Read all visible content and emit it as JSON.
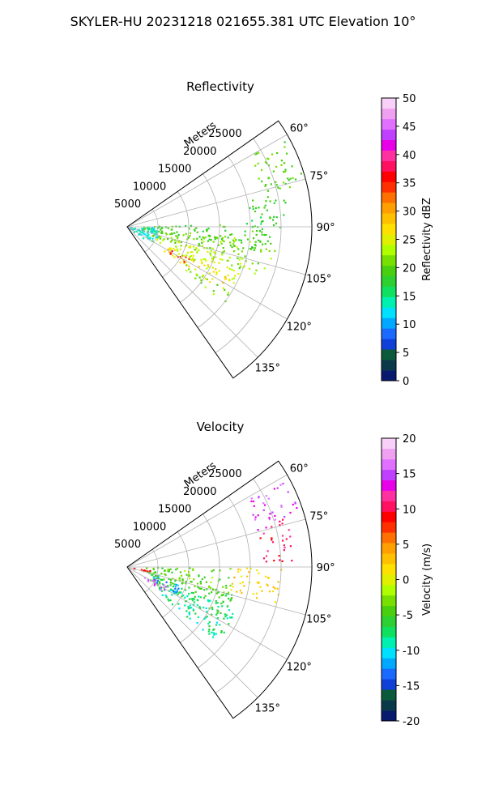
{
  "figure": {
    "title": "SKYLER-HU  20231218  021655.381 UTC Elevation 10°"
  },
  "chart_data": [
    {
      "type": "heatmap",
      "projection": "polar-sector",
      "title": "Reflectivity",
      "range_label": "Meters",
      "range_ticks": [
        5000,
        10000,
        15000,
        20000,
        25000
      ],
      "range_max": 30000,
      "azimuth_range": [
        55,
        145
      ],
      "azimuth_ticks": [
        "60°",
        "75°",
        "90°",
        "105°",
        "120°",
        "135°"
      ],
      "grid": true,
      "colorbar": {
        "label": "Reflectivity dBZ",
        "min": 0,
        "max": 50,
        "ticks": [
          0,
          5,
          10,
          15,
          20,
          25,
          30,
          35,
          40,
          45,
          50
        ],
        "colors": [
          "#081a6e",
          "#0a3a4a",
          "#0b5a3a",
          "#1040d8",
          "#1a6aff",
          "#00a8ff",
          "#00e0ff",
          "#00f0b0",
          "#10e060",
          "#2cd030",
          "#48d010",
          "#78e000",
          "#b0ff00",
          "#e0f000",
          "#ffe000",
          "#ffc000",
          "#ffa000",
          "#ff7000",
          "#ff3000",
          "#ff0000",
          "#ff1060",
          "#ff30a0",
          "#e800e8",
          "#c040ff",
          "#e070ff",
          "#f0a0f0",
          "#f8d0f8"
        ]
      },
      "regions": [
        {
          "az": [
            60,
            76
          ],
          "r": [
            22000,
            29500
          ],
          "value": 20
        },
        {
          "az": [
            76,
            90
          ],
          "r": [
            20000,
            26000
          ],
          "value": 18
        },
        {
          "az": [
            88,
            100
          ],
          "r": [
            2000,
            25000
          ],
          "value": 19
        },
        {
          "az": [
            95,
            110
          ],
          "r": [
            4000,
            24000
          ],
          "value": 21
        },
        {
          "az": [
            105,
            118
          ],
          "r": [
            5000,
            20000
          ],
          "value": 24
        },
        {
          "az": [
            115,
            124
          ],
          "r": [
            7000,
            19000
          ],
          "value": 27
        },
        {
          "az": [
            117,
            122
          ],
          "r": [
            8000,
            12000
          ],
          "value": 36
        },
        {
          "az": [
            122,
            128
          ],
          "r": [
            11000,
            20000
          ],
          "value": 21
        },
        {
          "az": [
            90,
            125
          ],
          "r": [
            500,
            5000
          ],
          "value": 13
        }
      ]
    },
    {
      "type": "heatmap",
      "projection": "polar-sector",
      "title": "Velocity",
      "range_label": "Meters",
      "range_ticks": [
        5000,
        10000,
        15000,
        20000,
        25000
      ],
      "range_max": 30000,
      "azimuth_range": [
        55,
        145
      ],
      "azimuth_ticks": [
        "60°",
        "75°",
        "90°",
        "105°",
        "120°",
        "135°"
      ],
      "grid": true,
      "colorbar": {
        "label": "Velocity (m/s)",
        "min": -20,
        "max": 20,
        "ticks": [
          -20,
          -15,
          -10,
          -5,
          0,
          5,
          10,
          15,
          20
        ],
        "colors": [
          "#081a6e",
          "#0a3a4a",
          "#0b5a3a",
          "#1040d8",
          "#1a6aff",
          "#00a8ff",
          "#00e0ff",
          "#00f0b0",
          "#10e060",
          "#2cd030",
          "#48d010",
          "#78e000",
          "#b0ff00",
          "#e0f000",
          "#ffe000",
          "#ffc000",
          "#ffa000",
          "#ff7000",
          "#ff3000",
          "#ff0000",
          "#ff1060",
          "#ff30a0",
          "#e800e8",
          "#c040ff",
          "#e070ff",
          "#f0a0f0",
          "#f8d0f8"
        ]
      },
      "regions": [
        {
          "az": [
            60,
            72
          ],
          "r": [
            22000,
            29500
          ],
          "value": 15
        },
        {
          "az": [
            72,
            88
          ],
          "r": [
            22000,
            27000
          ],
          "value": 11
        },
        {
          "az": [
            90,
            104
          ],
          "r": [
            17000,
            25000
          ],
          "value": 2
        },
        {
          "az": [
            90,
            108
          ],
          "r": [
            3000,
            17000
          ],
          "value": -4
        },
        {
          "az": [
            104,
            120
          ],
          "r": [
            4000,
            18000
          ],
          "value": -6
        },
        {
          "az": [
            110,
            130
          ],
          "r": [
            6000,
            19000
          ],
          "value": -8
        },
        {
          "az": [
            108,
            118
          ],
          "r": [
            4000,
            9000
          ],
          "value": -12
        },
        {
          "az": [
            114,
            124
          ],
          "r": [
            3000,
            7000
          ],
          "value": 15
        },
        {
          "az": [
            95,
            102
          ],
          "r": [
            500,
            4000
          ],
          "value": 9
        }
      ]
    }
  ]
}
